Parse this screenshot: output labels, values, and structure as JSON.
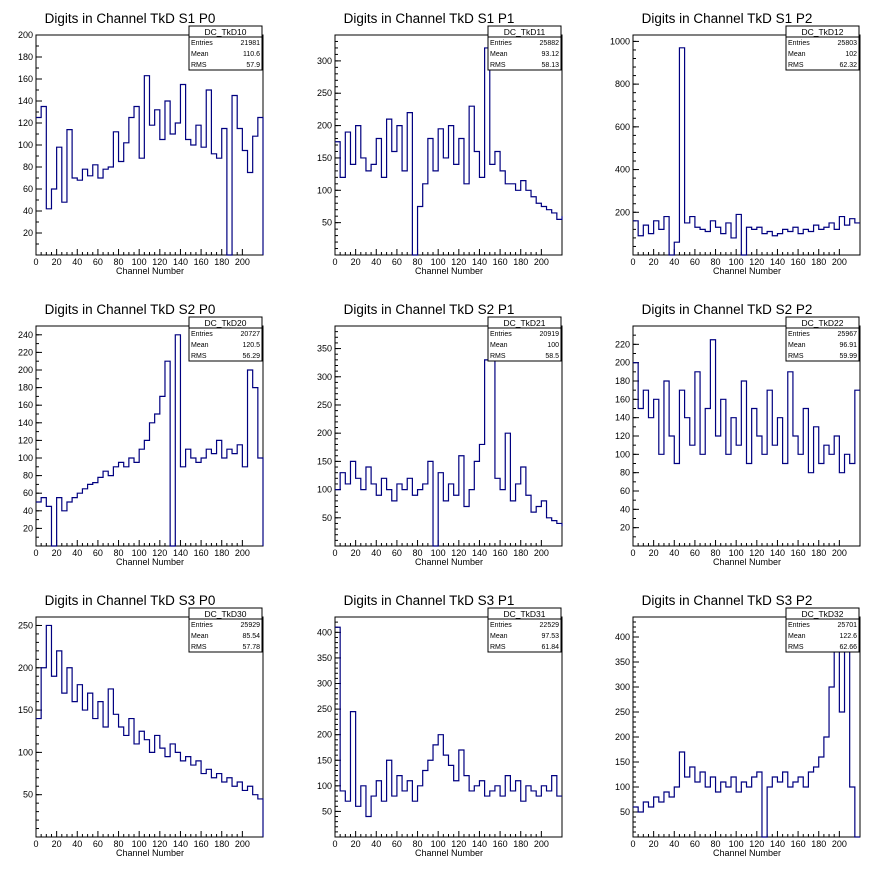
{
  "chart_data": [
    {
      "type": "line",
      "name": "DC_TkD10",
      "title": "Digits in Channel TkD S1 P0",
      "xlabel": "Channel Number",
      "ylabel": "",
      "xlim": [
        0,
        220
      ],
      "ylim": [
        0,
        200
      ],
      "xticks": [
        0,
        20,
        40,
        60,
        80,
        100,
        120,
        140,
        160,
        180,
        200
      ],
      "yticks": [
        20,
        40,
        60,
        80,
        100,
        120,
        140,
        160,
        180,
        200
      ],
      "stats": {
        "entries": "21981",
        "mean": "110.6",
        "rms": "57.9"
      },
      "x": [
        0,
        5,
        10,
        15,
        20,
        25,
        30,
        35,
        40,
        45,
        50,
        55,
        60,
        65,
        70,
        75,
        80,
        85,
        90,
        95,
        100,
        105,
        110,
        115,
        120,
        125,
        130,
        135,
        140,
        145,
        150,
        155,
        160,
        165,
        170,
        175,
        180,
        185,
        190,
        195,
        200,
        205,
        210,
        215,
        220
      ],
      "values": [
        125,
        135,
        42,
        60,
        98,
        48,
        114,
        70,
        68,
        78,
        72,
        82,
        70,
        78,
        80,
        112,
        85,
        102,
        125,
        135,
        88,
        163,
        118,
        132,
        105,
        140,
        110,
        120,
        155,
        105,
        100,
        118,
        98,
        150,
        92,
        88,
        115,
        0,
        145,
        115,
        95,
        75,
        108,
        125,
        0
      ]
    },
    {
      "type": "line",
      "name": "DC_TkD11",
      "title": "Digits in Channel TkD S1 P1",
      "xlabel": "Channel Number",
      "ylabel": "",
      "xlim": [
        0,
        220
      ],
      "ylim": [
        0,
        340
      ],
      "xticks": [
        0,
        20,
        40,
        60,
        80,
        100,
        120,
        140,
        160,
        180,
        200
      ],
      "yticks": [
        50,
        100,
        150,
        200,
        250,
        300
      ],
      "stats": {
        "entries": "25882",
        "mean": "93.12",
        "rms": "58.13"
      },
      "x": [
        0,
        5,
        10,
        15,
        20,
        25,
        30,
        35,
        40,
        45,
        50,
        55,
        60,
        65,
        70,
        75,
        80,
        85,
        90,
        95,
        100,
        105,
        110,
        115,
        120,
        125,
        130,
        135,
        140,
        145,
        150,
        155,
        160,
        165,
        170,
        175,
        180,
        185,
        190,
        195,
        200,
        205,
        210,
        215,
        220
      ],
      "values": [
        175,
        120,
        190,
        140,
        200,
        150,
        130,
        140,
        180,
        120,
        210,
        160,
        200,
        130,
        220,
        0,
        75,
        110,
        180,
        130,
        195,
        150,
        200,
        140,
        180,
        110,
        230,
        160,
        120,
        320,
        140,
        160,
        130,
        110,
        110,
        100,
        115,
        100,
        90,
        80,
        75,
        70,
        65,
        55,
        60
      ]
    },
    {
      "type": "line",
      "name": "DC_TkD12",
      "title": "Digits in Channel TkD S1 P2",
      "xlabel": "Channel Number",
      "ylabel": "",
      "xlim": [
        0,
        220
      ],
      "ylim": [
        0,
        1030
      ],
      "xticks": [
        0,
        20,
        40,
        60,
        80,
        100,
        120,
        140,
        160,
        180,
        200
      ],
      "yticks": [
        200,
        400,
        600,
        800,
        1000
      ],
      "stats": {
        "entries": "25803",
        "mean": "102",
        "rms": "62.32"
      },
      "x": [
        0,
        5,
        10,
        15,
        20,
        25,
        30,
        35,
        40,
        45,
        50,
        55,
        60,
        65,
        70,
        75,
        80,
        85,
        90,
        95,
        100,
        105,
        110,
        115,
        120,
        125,
        130,
        135,
        140,
        145,
        150,
        155,
        160,
        165,
        170,
        175,
        180,
        185,
        190,
        195,
        200,
        205,
        210,
        215
      ],
      "values": [
        160,
        90,
        140,
        100,
        160,
        120,
        180,
        0,
        60,
        970,
        150,
        180,
        130,
        120,
        110,
        160,
        130,
        100,
        150,
        80,
        190,
        0,
        130,
        120,
        130,
        100,
        110,
        90,
        100,
        120,
        110,
        130,
        100,
        120,
        110,
        140,
        120,
        130,
        150,
        120,
        180,
        140,
        170,
        150
      ]
    },
    {
      "type": "line",
      "name": "DC_TkD20",
      "title": "Digits in Channel TkD S2 P0",
      "xlabel": "Channel Number",
      "ylabel": "",
      "xlim": [
        0,
        220
      ],
      "ylim": [
        0,
        250
      ],
      "xticks": [
        0,
        20,
        40,
        60,
        80,
        100,
        120,
        140,
        160,
        180,
        200
      ],
      "yticks": [
        20,
        40,
        60,
        80,
        100,
        120,
        140,
        160,
        180,
        200,
        220,
        240
      ],
      "stats": {
        "entries": "20727",
        "mean": "120.5",
        "rms": "56.29"
      },
      "x": [
        0,
        5,
        10,
        15,
        20,
        25,
        30,
        35,
        40,
        45,
        50,
        55,
        60,
        65,
        70,
        75,
        80,
        85,
        90,
        95,
        100,
        105,
        110,
        115,
        120,
        125,
        130,
        135,
        140,
        145,
        150,
        155,
        160,
        165,
        170,
        175,
        180,
        185,
        190,
        195,
        200,
        205,
        210,
        215,
        220
      ],
      "values": [
        50,
        55,
        45,
        0,
        55,
        40,
        50,
        55,
        60,
        65,
        70,
        72,
        78,
        85,
        80,
        90,
        95,
        90,
        100,
        95,
        110,
        120,
        140,
        150,
        170,
        210,
        0,
        240,
        90,
        110,
        100,
        95,
        100,
        110,
        105,
        120,
        100,
        110,
        105,
        115,
        90,
        200,
        180,
        100,
        0
      ]
    },
    {
      "type": "line",
      "name": "DC_TkD21",
      "title": "Digits in Channel TkD S2 P1",
      "xlabel": "Channel Number",
      "ylabel": "",
      "xlim": [
        0,
        220
      ],
      "ylim": [
        0,
        390
      ],
      "xticks": [
        0,
        20,
        40,
        60,
        80,
        100,
        120,
        140,
        160,
        180,
        200
      ],
      "yticks": [
        50,
        100,
        150,
        200,
        250,
        300,
        350
      ],
      "stats": {
        "entries": "20919",
        "mean": "100",
        "rms": "58.5"
      },
      "x": [
        0,
        5,
        10,
        15,
        20,
        25,
        30,
        35,
        40,
        45,
        50,
        55,
        60,
        65,
        70,
        75,
        80,
        85,
        90,
        95,
        100,
        105,
        110,
        115,
        120,
        125,
        130,
        135,
        140,
        145,
        150,
        155,
        160,
        165,
        170,
        175,
        180,
        185,
        190,
        195,
        200,
        205,
        210,
        215,
        220
      ],
      "values": [
        100,
        130,
        110,
        150,
        120,
        100,
        140,
        110,
        90,
        120,
        100,
        80,
        110,
        100,
        120,
        90,
        100,
        110,
        150,
        0,
        130,
        80,
        110,
        90,
        160,
        70,
        100,
        150,
        180,
        330,
        370,
        120,
        100,
        200,
        80,
        110,
        140,
        90,
        60,
        70,
        80,
        50,
        45,
        40,
        35
      ]
    },
    {
      "type": "line",
      "name": "DC_TkD22",
      "title": "Digits in Channel TkD S2 P2",
      "xlabel": "Channel Number",
      "ylabel": "",
      "xlim": [
        0,
        220
      ],
      "ylim": [
        0,
        240
      ],
      "xticks": [
        0,
        20,
        40,
        60,
        80,
        100,
        120,
        140,
        160,
        180,
        200
      ],
      "yticks": [
        20,
        40,
        60,
        80,
        100,
        120,
        140,
        160,
        180,
        200,
        220
      ],
      "stats": {
        "entries": "25967",
        "mean": "96.91",
        "rms": "59.99"
      },
      "x": [
        0,
        5,
        10,
        15,
        20,
        25,
        30,
        35,
        40,
        45,
        50,
        55,
        60,
        65,
        70,
        75,
        80,
        85,
        90,
        95,
        100,
        105,
        110,
        115,
        120,
        125,
        130,
        135,
        140,
        145,
        150,
        155,
        160,
        165,
        170,
        175,
        180,
        185,
        190,
        195,
        200,
        205,
        210,
        215
      ],
      "values": [
        200,
        150,
        170,
        140,
        160,
        100,
        180,
        120,
        90,
        170,
        140,
        110,
        190,
        100,
        150,
        225,
        120,
        160,
        100,
        140,
        110,
        180,
        90,
        150,
        120,
        100,
        170,
        110,
        140,
        90,
        190,
        120,
        100,
        150,
        80,
        130,
        90,
        110,
        100,
        120,
        80,
        100,
        90,
        170
      ]
    },
    {
      "type": "line",
      "name": "DC_TkD30",
      "title": "Digits in Channel TkD S3 P0",
      "xlabel": "Channel Number",
      "ylabel": "",
      "xlim": [
        0,
        220
      ],
      "ylim": [
        0,
        260
      ],
      "xticks": [
        0,
        20,
        40,
        60,
        80,
        100,
        120,
        140,
        160,
        180,
        200
      ],
      "yticks": [
        50,
        100,
        150,
        200,
        250
      ],
      "stats": {
        "entries": "25929",
        "mean": "85.54",
        "rms": "57.78"
      },
      "x": [
        0,
        5,
        10,
        15,
        20,
        25,
        30,
        35,
        40,
        45,
        50,
        55,
        60,
        65,
        70,
        75,
        80,
        85,
        90,
        95,
        100,
        105,
        110,
        115,
        120,
        125,
        130,
        135,
        140,
        145,
        150,
        155,
        160,
        165,
        170,
        175,
        180,
        185,
        190,
        195,
        200,
        205,
        210,
        215,
        220
      ],
      "values": [
        140,
        200,
        250,
        190,
        220,
        170,
        200,
        160,
        180,
        150,
        170,
        140,
        160,
        130,
        175,
        145,
        130,
        120,
        140,
        110,
        125,
        115,
        100,
        120,
        105,
        95,
        110,
        100,
        90,
        95,
        85,
        90,
        75,
        80,
        70,
        75,
        65,
        70,
        60,
        65,
        55,
        60,
        50,
        45,
        0
      ]
    },
    {
      "type": "line",
      "name": "DC_TkD31",
      "title": "Digits in Channel TkD S3 P1",
      "xlabel": "Channel Number",
      "ylabel": "",
      "xlim": [
        0,
        220
      ],
      "ylim": [
        0,
        430
      ],
      "xticks": [
        0,
        20,
        40,
        60,
        80,
        100,
        120,
        140,
        160,
        180,
        200
      ],
      "yticks": [
        50,
        100,
        150,
        200,
        250,
        300,
        350,
        400
      ],
      "stats": {
        "entries": "22529",
        "mean": "97.53",
        "rms": "61.84"
      },
      "x": [
        0,
        5,
        10,
        15,
        20,
        25,
        30,
        35,
        40,
        45,
        50,
        55,
        60,
        65,
        70,
        75,
        80,
        85,
        90,
        95,
        100,
        105,
        110,
        115,
        120,
        125,
        130,
        135,
        140,
        145,
        150,
        155,
        160,
        165,
        170,
        175,
        180,
        185,
        190,
        195,
        200,
        205,
        210,
        215
      ],
      "values": [
        410,
        90,
        70,
        245,
        60,
        100,
        40,
        80,
        110,
        70,
        150,
        80,
        120,
        90,
        110,
        70,
        100,
        130,
        150,
        180,
        200,
        160,
        140,
        110,
        170,
        120,
        90,
        100,
        110,
        80,
        90,
        100,
        80,
        120,
        90,
        110,
        70,
        100,
        90,
        80,
        100,
        90,
        120,
        80
      ]
    },
    {
      "type": "line",
      "name": "DC_TkD32",
      "title": "Digits in Channel TkD S3 P2",
      "xlabel": "Channel Number",
      "ylabel": "",
      "xlim": [
        0,
        220
      ],
      "ylim": [
        0,
        440
      ],
      "xticks": [
        0,
        20,
        40,
        60,
        80,
        100,
        120,
        140,
        160,
        180,
        200
      ],
      "yticks": [
        50,
        100,
        150,
        200,
        250,
        300,
        350,
        400
      ],
      "stats": {
        "entries": "25701",
        "mean": "122.6",
        "rms": "62.66"
      },
      "x": [
        0,
        5,
        10,
        15,
        20,
        25,
        30,
        35,
        40,
        45,
        50,
        55,
        60,
        65,
        70,
        75,
        80,
        85,
        90,
        95,
        100,
        105,
        110,
        115,
        120,
        125,
        130,
        135,
        140,
        145,
        150,
        155,
        160,
        165,
        170,
        175,
        180,
        185,
        190,
        195,
        200,
        205,
        210,
        215
      ],
      "values": [
        60,
        50,
        70,
        60,
        80,
        70,
        90,
        80,
        100,
        170,
        120,
        140,
        110,
        130,
        100,
        120,
        90,
        110,
        100,
        120,
        90,
        110,
        100,
        120,
        130,
        0,
        100,
        120,
        110,
        130,
        100,
        110,
        120,
        100,
        130,
        140,
        160,
        200,
        300,
        400,
        250,
        420,
        100,
        0
      ]
    }
  ],
  "labels": {
    "entries": "Entries",
    "mean": "Mean",
    "rms": "RMS"
  },
  "colors": {
    "line": "#000080",
    "axis": "#000000"
  }
}
